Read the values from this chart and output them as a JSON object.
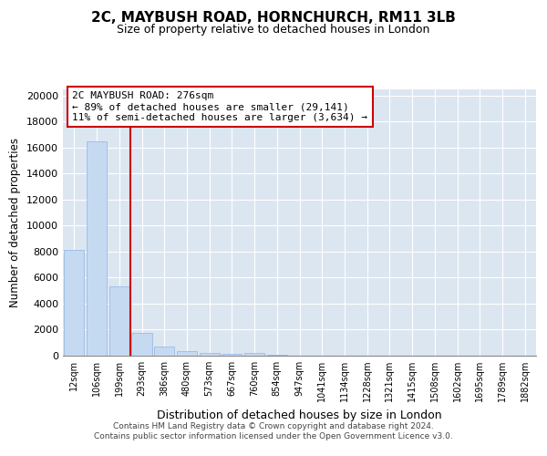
{
  "title_line1": "2C, MAYBUSH ROAD, HORNCHURCH, RM11 3LB",
  "title_line2": "Size of property relative to detached houses in London",
  "xlabel": "Distribution of detached houses by size in London",
  "ylabel": "Number of detached properties",
  "bar_labels": [
    "12sqm",
    "106sqm",
    "199sqm",
    "293sqm",
    "386sqm",
    "480sqm",
    "573sqm",
    "667sqm",
    "760sqm",
    "854sqm",
    "947sqm",
    "1041sqm",
    "1134sqm",
    "1228sqm",
    "1321sqm",
    "1415sqm",
    "1508sqm",
    "1602sqm",
    "1695sqm",
    "1789sqm",
    "1882sqm"
  ],
  "bar_values": [
    8100,
    16500,
    5300,
    1750,
    700,
    320,
    230,
    170,
    230,
    60,
    10,
    5,
    3,
    2,
    1,
    1,
    0,
    0,
    0,
    0,
    0
  ],
  "bar_color": "#c5d9f1",
  "bar_edge_color": "#8db4e2",
  "vline_x": 2.5,
  "vline_color": "#cc0000",
  "annotation_text": "2C MAYBUSH ROAD: 276sqm\n← 89% of detached houses are smaller (29,141)\n11% of semi-detached houses are larger (3,634) →",
  "annotation_box_color": "#ffffff",
  "annotation_border_color": "#cc0000",
  "ylim": [
    0,
    20500
  ],
  "yticks": [
    0,
    2000,
    4000,
    6000,
    8000,
    10000,
    12000,
    14000,
    16000,
    18000,
    20000
  ],
  "footer_line1": "Contains HM Land Registry data © Crown copyright and database right 2024.",
  "footer_line2": "Contains public sector information licensed under the Open Government Licence v3.0.",
  "fig_bg_color": "#ffffff",
  "plot_bg_color": "#dce6f1"
}
